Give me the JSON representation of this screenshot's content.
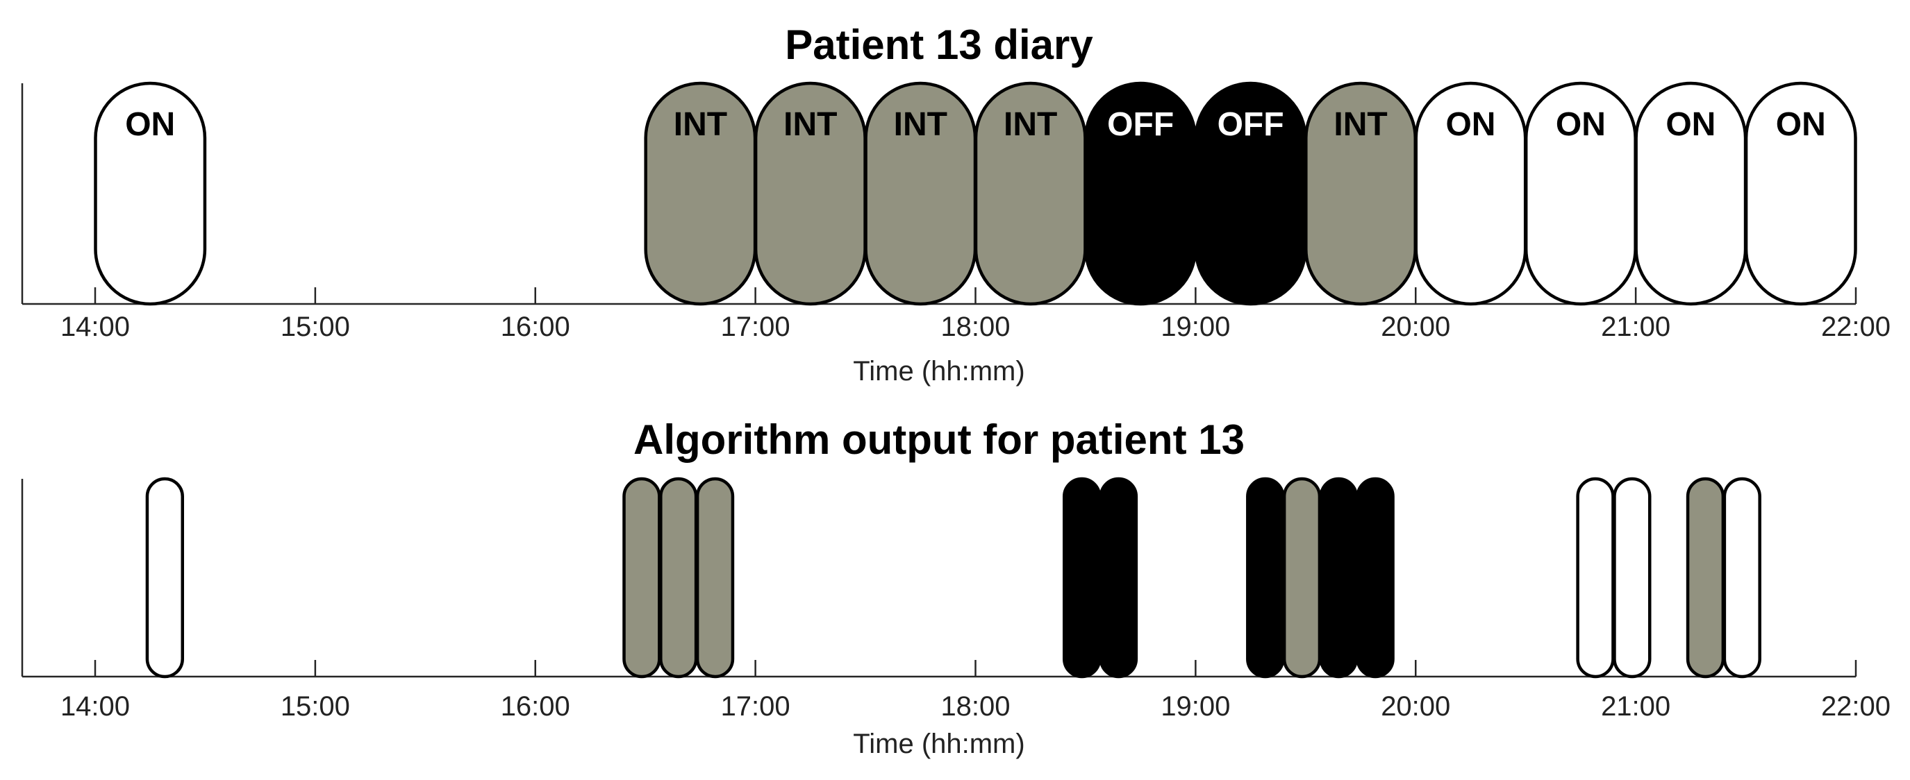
{
  "colors": {
    "ON": "#ffffff",
    "INT": "#929280",
    "OFF": "#000000",
    "stroke": "#000000",
    "axis": "#262626"
  },
  "chart_data": [
    {
      "type": "timeline",
      "title": "Patient 13 diary",
      "xlabel": "Time (hh:mm)",
      "ylabel": "",
      "xlim": [
        "14:00",
        "22:00"
      ],
      "tick_labels": [
        "14:00",
        "15:00",
        "16:00",
        "17:00",
        "18:00",
        "19:00",
        "20:00",
        "21:00",
        "22:00"
      ],
      "show_block_labels": true,
      "blocks": [
        {
          "start": "14:00",
          "end": "14:30",
          "state": "ON",
          "label": "ON"
        },
        {
          "start": "16:30",
          "end": "17:00",
          "state": "INT",
          "label": "INT"
        },
        {
          "start": "17:00",
          "end": "17:30",
          "state": "INT",
          "label": "INT"
        },
        {
          "start": "17:30",
          "end": "18:00",
          "state": "INT",
          "label": "INT"
        },
        {
          "start": "18:00",
          "end": "18:30",
          "state": "INT",
          "label": "INT"
        },
        {
          "start": "18:30",
          "end": "19:00",
          "state": "OFF",
          "label": "OFF"
        },
        {
          "start": "19:00",
          "end": "19:30",
          "state": "OFF",
          "label": "OFF"
        },
        {
          "start": "19:30",
          "end": "20:00",
          "state": "INT",
          "label": "INT"
        },
        {
          "start": "20:00",
          "end": "20:30",
          "state": "ON",
          "label": "ON"
        },
        {
          "start": "20:30",
          "end": "21:00",
          "state": "ON",
          "label": "ON"
        },
        {
          "start": "21:00",
          "end": "21:30",
          "state": "ON",
          "label": "ON"
        },
        {
          "start": "21:30",
          "end": "22:00",
          "state": "ON",
          "label": "ON"
        }
      ]
    },
    {
      "type": "timeline",
      "title": "Algorithm output for patient 13",
      "xlabel": "Time (hh:mm)",
      "ylabel": "",
      "xlim": [
        "14:00",
        "22:00"
      ],
      "tick_labels": [
        "14:00",
        "15:00",
        "16:00",
        "17:00",
        "18:00",
        "19:00",
        "20:00",
        "21:00",
        "22:00"
      ],
      "show_block_labels": false,
      "blocks": [
        {
          "start": "14:14",
          "end": "14:24",
          "state": "ON"
        },
        {
          "start": "16:24",
          "end": "16:34",
          "state": "INT"
        },
        {
          "start": "16:34",
          "end": "16:44",
          "state": "INT"
        },
        {
          "start": "16:44",
          "end": "16:54",
          "state": "INT"
        },
        {
          "start": "18:24",
          "end": "18:34",
          "state": "OFF"
        },
        {
          "start": "18:34",
          "end": "18:44",
          "state": "OFF"
        },
        {
          "start": "19:14",
          "end": "19:24",
          "state": "OFF"
        },
        {
          "start": "19:24",
          "end": "19:34",
          "state": "INT"
        },
        {
          "start": "19:34",
          "end": "19:44",
          "state": "OFF"
        },
        {
          "start": "19:44",
          "end": "19:54",
          "state": "OFF"
        },
        {
          "start": "20:44",
          "end": "20:54",
          "state": "ON"
        },
        {
          "start": "20:54",
          "end": "21:04",
          "state": "ON"
        },
        {
          "start": "21:14",
          "end": "21:24",
          "state": "INT"
        },
        {
          "start": "21:24",
          "end": "21:34",
          "state": "ON"
        }
      ]
    }
  ]
}
